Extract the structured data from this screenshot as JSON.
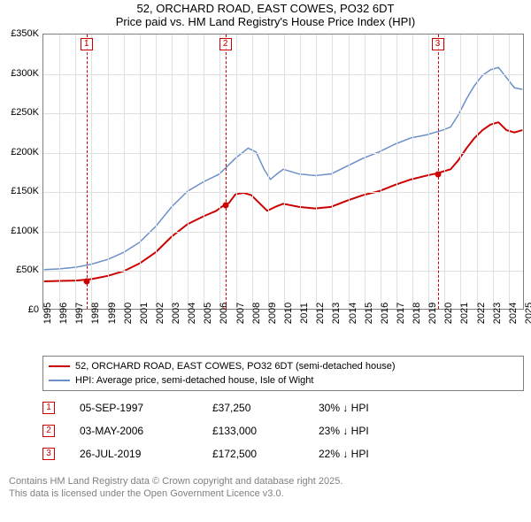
{
  "title_line1": "52, ORCHARD ROAD, EAST COWES, PO32 6DT",
  "title_line2": "Price paid vs. HM Land Registry's House Price Index (HPI)",
  "chart": {
    "type": "line",
    "background_color": "#ffffff",
    "grid_color": "#e0e0e0",
    "axis_color": "#808080",
    "axis_fontsize": 11,
    "x": {
      "min": 1995,
      "max": 2025,
      "step": 1,
      "labels": [
        "1995",
        "1996",
        "1997",
        "1998",
        "1999",
        "2000",
        "2001",
        "2002",
        "2003",
        "2004",
        "2005",
        "2006",
        "2007",
        "2008",
        "2009",
        "2010",
        "2011",
        "2012",
        "2013",
        "2014",
        "2015",
        "2016",
        "2017",
        "2018",
        "2019",
        "2020",
        "2021",
        "2022",
        "2023",
        "2024",
        "2025"
      ]
    },
    "y": {
      "min": 0,
      "max": 350000,
      "step": 50000,
      "currency_prefix": "£",
      "suffix": "K",
      "labels": [
        "£0",
        "£50K",
        "£100K",
        "£150K",
        "£200K",
        "£250K",
        "£300K",
        "£350K"
      ]
    },
    "series": [
      {
        "id": "price_paid",
        "label": "52, ORCHARD ROAD, EAST COWES, PO32 6DT (semi-detached house)",
        "color": "#cc0000",
        "line_width": 2,
        "points": [
          [
            1995.0,
            35000
          ],
          [
            1996.0,
            35500
          ],
          [
            1997.0,
            36000
          ],
          [
            1997.68,
            37250
          ],
          [
            1998.0,
            38000
          ],
          [
            1999.0,
            42000
          ],
          [
            2000.0,
            48000
          ],
          [
            2001.0,
            58000
          ],
          [
            2002.0,
            72000
          ],
          [
            2003.0,
            92000
          ],
          [
            2004.0,
            108000
          ],
          [
            2005.0,
            118000
          ],
          [
            2005.8,
            125000
          ],
          [
            2006.0,
            128000
          ],
          [
            2006.34,
            133000
          ],
          [
            2006.6,
            135000
          ],
          [
            2007.0,
            146000
          ],
          [
            2007.5,
            148000
          ],
          [
            2008.0,
            145000
          ],
          [
            2008.5,
            135000
          ],
          [
            2009.0,
            125000
          ],
          [
            2009.5,
            130000
          ],
          [
            2010.0,
            134000
          ],
          [
            2011.0,
            130000
          ],
          [
            2012.0,
            128000
          ],
          [
            2013.0,
            130000
          ],
          [
            2014.0,
            138000
          ],
          [
            2015.0,
            145000
          ],
          [
            2016.0,
            150000
          ],
          [
            2017.0,
            158000
          ],
          [
            2018.0,
            165000
          ],
          [
            2019.0,
            170000
          ],
          [
            2019.57,
            172500
          ],
          [
            2020.0,
            175000
          ],
          [
            2020.5,
            178000
          ],
          [
            2021.0,
            190000
          ],
          [
            2021.5,
            205000
          ],
          [
            2022.0,
            218000
          ],
          [
            2022.5,
            228000
          ],
          [
            2023.0,
            235000
          ],
          [
            2023.5,
            238000
          ],
          [
            2024.0,
            228000
          ],
          [
            2024.5,
            225000
          ],
          [
            2025.0,
            228000
          ]
        ]
      },
      {
        "id": "hpi",
        "label": "HPI: Average price, semi-detached house, Isle of Wight",
        "color": "#6b8fc9",
        "line_width": 1.5,
        "points": [
          [
            1995.0,
            50000
          ],
          [
            1996.0,
            51000
          ],
          [
            1997.0,
            53000
          ],
          [
            1998.0,
            57000
          ],
          [
            1999.0,
            63000
          ],
          [
            2000.0,
            72000
          ],
          [
            2001.0,
            85000
          ],
          [
            2002.0,
            105000
          ],
          [
            2003.0,
            130000
          ],
          [
            2004.0,
            150000
          ],
          [
            2005.0,
            162000
          ],
          [
            2006.0,
            172000
          ],
          [
            2007.0,
            192000
          ],
          [
            2007.8,
            205000
          ],
          [
            2008.3,
            200000
          ],
          [
            2008.8,
            178000
          ],
          [
            2009.2,
            165000
          ],
          [
            2009.6,
            172000
          ],
          [
            2010.0,
            178000
          ],
          [
            2011.0,
            172000
          ],
          [
            2012.0,
            170000
          ],
          [
            2013.0,
            172000
          ],
          [
            2014.0,
            182000
          ],
          [
            2015.0,
            192000
          ],
          [
            2016.0,
            200000
          ],
          [
            2017.0,
            210000
          ],
          [
            2018.0,
            218000
          ],
          [
            2019.0,
            222000
          ],
          [
            2020.0,
            228000
          ],
          [
            2020.5,
            232000
          ],
          [
            2021.0,
            248000
          ],
          [
            2021.5,
            268000
          ],
          [
            2022.0,
            285000
          ],
          [
            2022.5,
            298000
          ],
          [
            2023.0,
            305000
          ],
          [
            2023.5,
            308000
          ],
          [
            2024.0,
            295000
          ],
          [
            2024.5,
            282000
          ],
          [
            2025.0,
            280000
          ]
        ]
      }
    ],
    "sale_markers": [
      {
        "n": "1",
        "x": 1997.68,
        "y": 37250
      },
      {
        "n": "2",
        "x": 2006.34,
        "y": 133000
      },
      {
        "n": "3",
        "x": 2019.57,
        "y": 172500
      }
    ],
    "marker_box_color": "#cc0000"
  },
  "legend": {
    "rows": [
      {
        "color": "#cc0000",
        "text": "52, ORCHARD ROAD, EAST COWES, PO32 6DT (semi-detached house)"
      },
      {
        "color": "#6b8fc9",
        "text": "HPI: Average price, semi-detached house, Isle of Wight"
      }
    ]
  },
  "sales": [
    {
      "n": "1",
      "date": "05-SEP-1997",
      "price": "£37,250",
      "delta": "30% ↓ HPI"
    },
    {
      "n": "2",
      "date": "03-MAY-2006",
      "price": "£133,000",
      "delta": "23% ↓ HPI"
    },
    {
      "n": "3",
      "date": "26-JUL-2019",
      "price": "£172,500",
      "delta": "22% ↓ HPI"
    }
  ],
  "footer_line1": "Contains HM Land Registry data © Crown copyright and database right 2025.",
  "footer_line2": "This data is licensed under the Open Government Licence v3.0."
}
